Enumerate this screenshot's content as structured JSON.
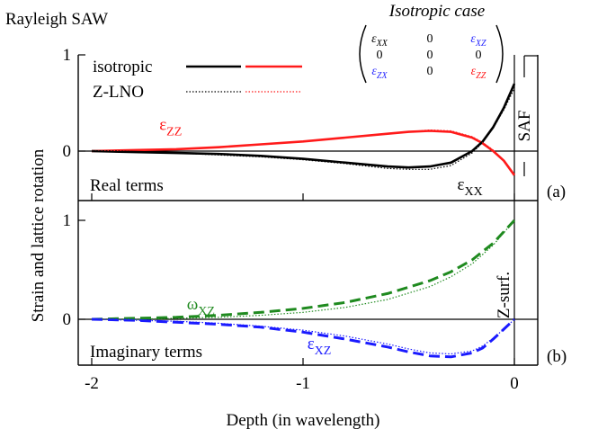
{
  "figure_title": "Rayleigh SAW",
  "matrix": {
    "title": "Isotropic case",
    "rows": [
      [
        "εXX",
        "0",
        "εXZ"
      ],
      [
        "0",
        "0",
        "0"
      ],
      [
        "εZX",
        "0",
        "εZZ"
      ]
    ],
    "colors": [
      [
        "#000000",
        "#000000",
        "#2b2bff"
      ],
      [
        "#000000",
        "#000000",
        "#000000"
      ],
      [
        "#2b2bff",
        "#000000",
        "#ff1a1a"
      ]
    ]
  },
  "legend": {
    "position": "top-left",
    "rows": [
      {
        "label": "isotropic",
        "style": "solid"
      },
      {
        "label": "Z-LNO",
        "style": "dotted"
      }
    ],
    "colors": [
      "#000000",
      "#ff1a1a"
    ]
  },
  "colors": {
    "black": "#000000",
    "red": "#ff1a1a",
    "blue": "#1a1aff",
    "green": "#1f8a1f"
  },
  "chart_data": [
    {
      "type": "line",
      "panel_label": "(a)",
      "panel_text": "Real terms",
      "side_label": "SAF",
      "xlim": [
        -2,
        0.1
      ],
      "ylim": [
        -0.45,
        1.0
      ],
      "yticks": [
        {
          "v": 0,
          "label": "0"
        },
        {
          "v": 1,
          "label": "1"
        }
      ],
      "series": [
        {
          "name": "εZZ",
          "color": "#ff1a1a",
          "style": "solid",
          "x": [
            -2.0,
            -1.8,
            -1.6,
            -1.4,
            -1.2,
            -1.0,
            -0.8,
            -0.6,
            -0.5,
            -0.4,
            -0.3,
            -0.2,
            -0.15,
            -0.1,
            -0.05,
            0.0
          ],
          "y": [
            0.0,
            0.01,
            0.02,
            0.04,
            0.07,
            0.1,
            0.14,
            0.18,
            0.2,
            0.21,
            0.2,
            0.14,
            0.08,
            0.0,
            -0.1,
            -0.25
          ]
        },
        {
          "name": "εXX",
          "color": "#000000",
          "style": "solid",
          "x": [
            -2.0,
            -1.8,
            -1.6,
            -1.4,
            -1.2,
            -1.0,
            -0.8,
            -0.6,
            -0.5,
            -0.4,
            -0.3,
            -0.2,
            -0.15,
            -0.1,
            -0.05,
            0.0
          ],
          "y": [
            0.0,
            -0.01,
            -0.02,
            -0.03,
            -0.05,
            -0.08,
            -0.12,
            -0.16,
            -0.17,
            -0.16,
            -0.12,
            0.0,
            0.1,
            0.25,
            0.45,
            0.7
          ]
        },
        {
          "name": "εZZ (Z-LNO)",
          "color": "#ff1a1a",
          "style": "dotted",
          "x": [
            -2.0,
            -1.8,
            -1.6,
            -1.4,
            -1.2,
            -1.0,
            -0.8,
            -0.6,
            -0.5,
            -0.4,
            -0.3,
            -0.2,
            -0.15,
            -0.1,
            -0.05,
            0.0
          ],
          "y": [
            0.0,
            0.01,
            0.02,
            0.04,
            0.07,
            0.1,
            0.14,
            0.18,
            0.2,
            0.22,
            0.21,
            0.15,
            0.09,
            0.01,
            -0.1,
            -0.24
          ]
        },
        {
          "name": "εXX (Z-LNO)",
          "color": "#000000",
          "style": "dotted",
          "x": [
            -2.0,
            -1.8,
            -1.6,
            -1.4,
            -1.2,
            -1.0,
            -0.8,
            -0.6,
            -0.5,
            -0.4,
            -0.3,
            -0.2,
            -0.15,
            -0.1,
            -0.05,
            0.0
          ],
          "y": [
            0.0,
            -0.01,
            -0.02,
            -0.04,
            -0.06,
            -0.09,
            -0.13,
            -0.18,
            -0.19,
            -0.19,
            -0.15,
            -0.02,
            0.09,
            0.24,
            0.43,
            0.65
          ]
        }
      ],
      "annotations": [
        {
          "text": "ε",
          "sub": "ZZ",
          "x": -1.68,
          "y": 0.22,
          "color": "#ff1a1a"
        },
        {
          "text": "ε",
          "sub": "XX",
          "x": -0.27,
          "y": -0.4,
          "color": "#000000"
        }
      ]
    },
    {
      "type": "line",
      "panel_label": "(b)",
      "panel_text": "Imaginary terms",
      "side_label": "Z-surf.",
      "xlabel": "Depth (in wavelength)",
      "xlim": [
        -2,
        0.1
      ],
      "ylim": [
        -0.45,
        1.0
      ],
      "xticks": [
        {
          "v": -2,
          "label": "-2"
        },
        {
          "v": -1,
          "label": "-1"
        },
        {
          "v": 0,
          "label": "0"
        }
      ],
      "yticks": [
        {
          "v": 0,
          "label": "0"
        },
        {
          "v": 1,
          "label": "1"
        }
      ],
      "series": [
        {
          "name": "ωXZ",
          "color": "#1f8a1f",
          "style": "dashed",
          "x": [
            -2.0,
            -1.8,
            -1.6,
            -1.4,
            -1.2,
            -1.0,
            -0.8,
            -0.6,
            -0.4,
            -0.3,
            -0.2,
            -0.1,
            0.0
          ],
          "y": [
            0.0,
            0.01,
            0.02,
            0.04,
            0.07,
            0.11,
            0.17,
            0.26,
            0.39,
            0.48,
            0.6,
            0.77,
            1.0
          ]
        },
        {
          "name": "εXZ",
          "color": "#1a1aff",
          "style": "dashed",
          "x": [
            -2.0,
            -1.8,
            -1.6,
            -1.4,
            -1.2,
            -1.0,
            -0.8,
            -0.6,
            -0.5,
            -0.4,
            -0.3,
            -0.2,
            -0.15,
            -0.1,
            -0.05,
            0.0
          ],
          "y": [
            0.0,
            -0.01,
            -0.03,
            -0.05,
            -0.08,
            -0.13,
            -0.2,
            -0.28,
            -0.33,
            -0.37,
            -0.38,
            -0.34,
            -0.29,
            -0.2,
            -0.1,
            0.0
          ]
        },
        {
          "name": "ωXZ (Z-LNO)",
          "color": "#1f8a1f",
          "style": "dotted",
          "x": [
            -2.0,
            -1.8,
            -1.6,
            -1.4,
            -1.2,
            -1.0,
            -0.8,
            -0.6,
            -0.4,
            -0.3,
            -0.2,
            -0.1,
            0.0
          ],
          "y": [
            0.0,
            0.0,
            0.01,
            0.02,
            0.04,
            0.07,
            0.12,
            0.2,
            0.33,
            0.43,
            0.56,
            0.75,
            1.0
          ]
        },
        {
          "name": "εXZ (Z-LNO)",
          "color": "#1a1aff",
          "style": "dotted",
          "x": [
            -2.0,
            -1.8,
            -1.6,
            -1.4,
            -1.2,
            -1.0,
            -0.8,
            -0.6,
            -0.5,
            -0.4,
            -0.3,
            -0.2,
            -0.15,
            -0.1,
            -0.05,
            0.0
          ],
          "y": [
            0.0,
            -0.01,
            -0.02,
            -0.04,
            -0.07,
            -0.11,
            -0.17,
            -0.25,
            -0.3,
            -0.34,
            -0.35,
            -0.32,
            -0.27,
            -0.19,
            -0.1,
            0.0
          ]
        }
      ],
      "annotations": [
        {
          "text": "ω",
          "sub": "XZ",
          "x": -1.55,
          "y": 0.1,
          "color": "#1f8a1f"
        },
        {
          "text": "ε",
          "sub": "XZ",
          "x": -0.98,
          "y": -0.3,
          "color": "#1a1aff"
        }
      ]
    }
  ],
  "ylabel": "Strain and lattice rotation"
}
